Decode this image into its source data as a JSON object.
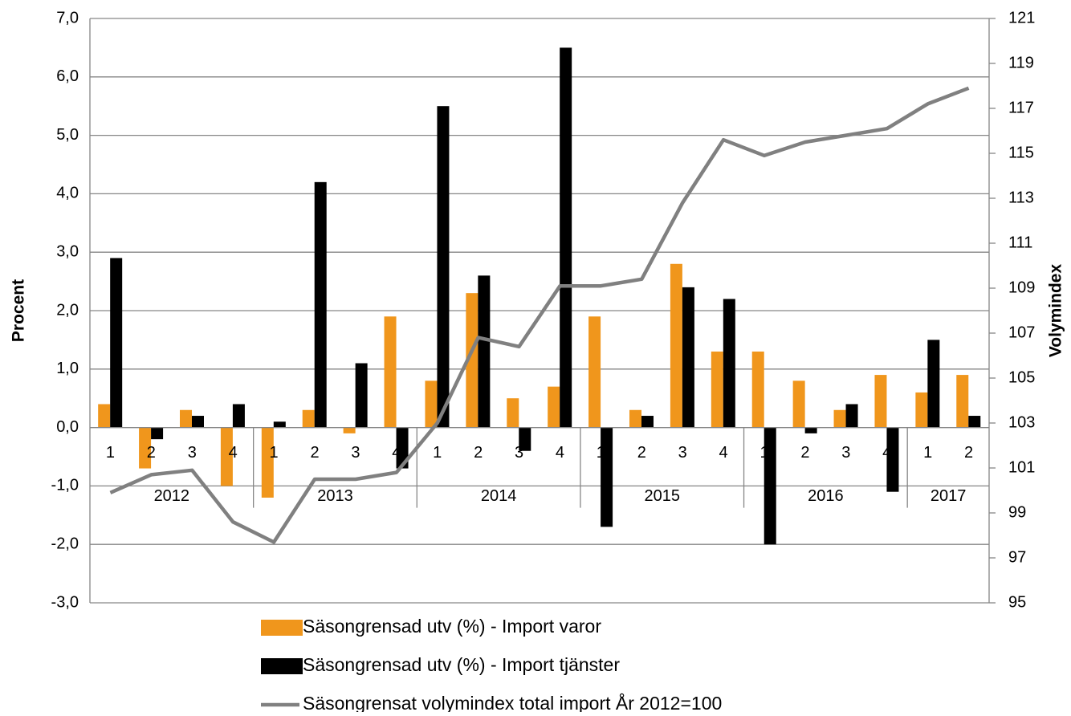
{
  "chart_data": {
    "type": "bar",
    "ylabel": "Procent",
    "y2label": "Volymindex",
    "categories": [
      {
        "year": "2012",
        "quarter": "1"
      },
      {
        "year": "2012",
        "quarter": "2"
      },
      {
        "year": "2012",
        "quarter": "3"
      },
      {
        "year": "2012",
        "quarter": "4"
      },
      {
        "year": "2013",
        "quarter": "1"
      },
      {
        "year": "2013",
        "quarter": "2"
      },
      {
        "year": "2013",
        "quarter": "3"
      },
      {
        "year": "2013",
        "quarter": "4"
      },
      {
        "year": "2014",
        "quarter": "1"
      },
      {
        "year": "2014",
        "quarter": "2"
      },
      {
        "year": "2014",
        "quarter": "3"
      },
      {
        "year": "2014",
        "quarter": "4"
      },
      {
        "year": "2015",
        "quarter": "1"
      },
      {
        "year": "2015",
        "quarter": "2"
      },
      {
        "year": "2015",
        "quarter": "3"
      },
      {
        "year": "2015",
        "quarter": "4"
      },
      {
        "year": "2016",
        "quarter": "1"
      },
      {
        "year": "2016",
        "quarter": "2"
      },
      {
        "year": "2016",
        "quarter": "3"
      },
      {
        "year": "2016",
        "quarter": "4"
      },
      {
        "year": "2017",
        "quarter": "1"
      },
      {
        "year": "2017",
        "quarter": "2"
      }
    ],
    "series": [
      {
        "name": "Säsongrensad utv (%) - Import varor",
        "type": "bar",
        "color": "#f0961c",
        "values": [
          0.4,
          -0.7,
          0.3,
          -1.0,
          -1.2,
          0.3,
          -0.1,
          1.9,
          0.8,
          2.3,
          0.5,
          0.7,
          1.9,
          0.3,
          2.8,
          1.3,
          1.3,
          0.8,
          0.3,
          0.9,
          0.6,
          0.9
        ]
      },
      {
        "name": "Säsongrensad utv (%) - Import tjänster",
        "type": "bar",
        "color": "#000000",
        "values": [
          2.9,
          -0.2,
          0.2,
          0.4,
          0.1,
          4.2,
          1.1,
          -0.7,
          5.5,
          2.6,
          -0.4,
          6.5,
          -1.7,
          0.2,
          2.4,
          2.2,
          -2.0,
          -0.1,
          0.4,
          -1.1,
          1.5,
          0.2
        ]
      },
      {
        "name": "Säsongrensat volymindex total import År 2012=100",
        "type": "line",
        "axis": "y2",
        "color": "#808080",
        "values": [
          99.9,
          100.7,
          100.9,
          98.6,
          97.7,
          100.5,
          100.5,
          100.8,
          103.0,
          106.8,
          106.4,
          109.1,
          109.1,
          109.4,
          112.8,
          115.6,
          114.9,
          115.5,
          115.8,
          116.1,
          117.2,
          117.9
        ]
      }
    ],
    "ylim": [
      -3,
      7
    ],
    "yticks": [
      {
        "value": -3,
        "label": "-3,0"
      },
      {
        "value": -2,
        "label": "-2,0"
      },
      {
        "value": -1,
        "label": "-1,0"
      },
      {
        "value": 0,
        "label": "0,0"
      },
      {
        "value": 1,
        "label": "1,0"
      },
      {
        "value": 2,
        "label": "2,0"
      },
      {
        "value": 3,
        "label": "3,0"
      },
      {
        "value": 4,
        "label": "4,0"
      },
      {
        "value": 5,
        "label": "5,0"
      },
      {
        "value": 6,
        "label": "6,0"
      },
      {
        "value": 7,
        "label": "7,0"
      }
    ],
    "y2lim": [
      95,
      121
    ],
    "y2ticks": [
      95,
      97,
      99,
      101,
      103,
      105,
      107,
      109,
      111,
      113,
      115,
      117,
      119,
      121
    ],
    "grid": true,
    "legend": "bottom"
  }
}
